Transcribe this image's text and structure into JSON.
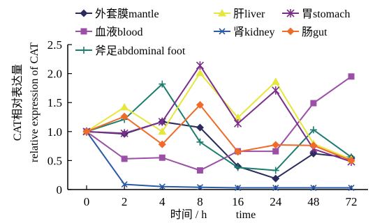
{
  "chart_data": {
    "type": "line",
    "x_categories": [
      "0",
      "2",
      "4",
      "8",
      "16",
      "24",
      "48",
      "72"
    ],
    "xlabel_cn": "时间 / h",
    "xlabel_en": "time",
    "ylabel_cn": "CAT相对表达量",
    "ylabel_en": "relative expression of CAT",
    "y_ticks": [
      "0",
      "0.5",
      "1.0",
      "1.5",
      "2.0",
      "2.5"
    ],
    "ylim": [
      0,
      2.5
    ],
    "legend_placement": "top",
    "series": [
      {
        "name": "外套膜mantle",
        "color": "#2b2b5e",
        "marker": "diamond",
        "values": [
          1.0,
          0.96,
          1.17,
          1.07,
          0.4,
          0.19,
          0.62,
          0.55
        ]
      },
      {
        "name": "血液blood",
        "color": "#9b4fa6",
        "marker": "square",
        "values": [
          1.0,
          0.53,
          0.55,
          0.33,
          0.66,
          0.66,
          1.49,
          1.95
        ]
      },
      {
        "name": "斧足abdominal foot",
        "color": "#1a7d6e",
        "marker": "plus",
        "values": [
          1.0,
          1.21,
          1.82,
          0.82,
          0.38,
          0.33,
          1.03,
          0.56
        ]
      },
      {
        "name": "肝liver",
        "color": "#e6e63c",
        "marker": "triangle",
        "values": [
          1.0,
          1.42,
          1.0,
          2.01,
          1.24,
          1.86,
          0.79,
          0.52
        ]
      },
      {
        "name": "肾kidney",
        "color": "#2a5aa8",
        "marker": "x",
        "values": [
          1.0,
          0.09,
          0.05,
          0.04,
          0.03,
          0.03,
          0.03,
          0.03
        ]
      },
      {
        "name": "胃stomach",
        "color": "#7a2f8a",
        "marker": "star",
        "values": [
          1.0,
          0.97,
          1.17,
          2.14,
          1.14,
          1.71,
          0.7,
          0.48
        ]
      },
      {
        "name": "肠gut",
        "color": "#f06a2a",
        "marker": "diamond",
        "values": [
          1.0,
          1.26,
          0.78,
          1.46,
          0.65,
          0.77,
          0.76,
          0.5
        ]
      }
    ]
  }
}
